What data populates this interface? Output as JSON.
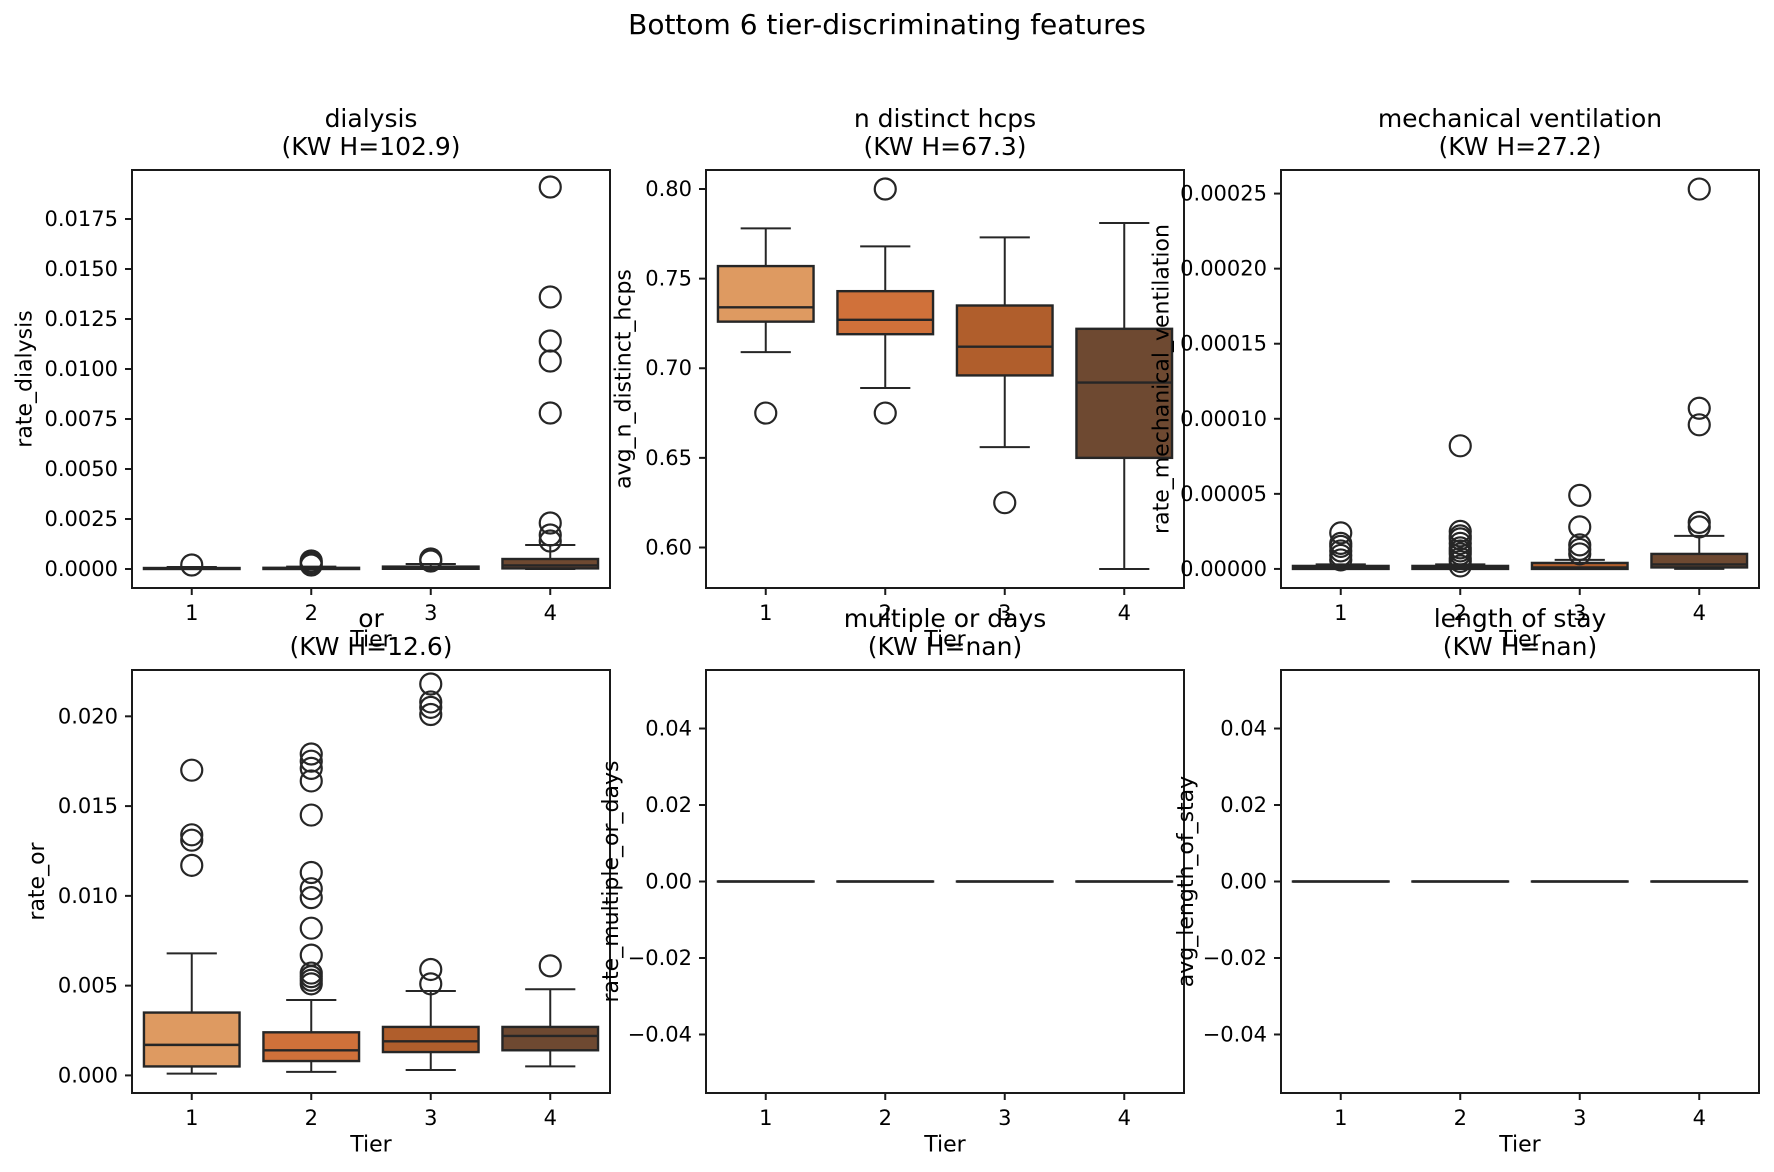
{
  "figure": {
    "suptitle": "Bottom 6 tier-discriminating features",
    "background": "#ffffff",
    "text_color": "#000000",
    "spine_color": "#1a1a1a",
    "box_line_color": "#262626",
    "tier_colors": [
      "#DE9A61",
      "#D0713A",
      "#B05E2C",
      "#6E4931"
    ]
  },
  "chart_data": [
    {
      "type": "box",
      "title": "dialysis",
      "subtitle": "(KW H=102.9)",
      "kw_h": "102.9",
      "xlabel": "Tier",
      "ylabel": "rate_dialysis",
      "categories": [
        "1",
        "2",
        "3",
        "4"
      ],
      "grid": false,
      "ylim": [
        -0.00095,
        0.01995
      ],
      "yticks": [
        0.0,
        0.0025,
        0.005,
        0.0075,
        0.01,
        0.0125,
        0.015,
        0.0175
      ],
      "ytick_labels": [
        "0.0000",
        "0.0025",
        "0.0050",
        "0.0075",
        "0.0100",
        "0.0125",
        "0.0150",
        "0.0175"
      ],
      "series": [
        {
          "tier": "1",
          "whislo": 0,
          "q1": 0,
          "med": 2e-05,
          "q3": 5e-05,
          "whishi": 0.0001,
          "outliers": [
            0.0002
          ]
        },
        {
          "tier": "2",
          "whislo": 0,
          "q1": 0,
          "med": 3e-05,
          "q3": 6e-05,
          "whishi": 0.00012,
          "outliers": [
            0.0002,
            0.0003,
            0.0004
          ]
        },
        {
          "tier": "3",
          "whislo": 0,
          "q1": 1e-05,
          "med": 5e-05,
          "q3": 0.00012,
          "whishi": 0.00025,
          "outliers": [
            0.0004,
            0.0005
          ]
        },
        {
          "tier": "4",
          "whislo": 0,
          "q1": 3e-05,
          "med": 0.00018,
          "q3": 0.0005,
          "whishi": 0.0012,
          "outliers": [
            0.0014,
            0.0017,
            0.0023,
            0.0078,
            0.0104,
            0.0114,
            0.0136,
            0.0191
          ]
        }
      ]
    },
    {
      "type": "box",
      "title": "n distinct hcps",
      "subtitle": "(KW H=67.3)",
      "kw_h": "67.3",
      "xlabel": "Tier",
      "ylabel": "avg_n_distinct_hcps",
      "categories": [
        "1",
        "2",
        "3",
        "4"
      ],
      "grid": false,
      "ylim": [
        0.5774,
        0.8106
      ],
      "yticks": [
        0.6,
        0.65,
        0.7,
        0.75,
        0.8
      ],
      "ytick_labels": [
        "0.60",
        "0.65",
        "0.70",
        "0.75",
        "0.80"
      ],
      "series": [
        {
          "tier": "1",
          "whislo": 0.709,
          "q1": 0.726,
          "med": 0.734,
          "q3": 0.757,
          "whishi": 0.778,
          "outliers": [
            0.675
          ]
        },
        {
          "tier": "2",
          "whislo": 0.689,
          "q1": 0.719,
          "med": 0.727,
          "q3": 0.743,
          "whishi": 0.768,
          "outliers": [
            0.675,
            0.8
          ]
        },
        {
          "tier": "3",
          "whislo": 0.656,
          "q1": 0.696,
          "med": 0.712,
          "q3": 0.735,
          "whishi": 0.773,
          "outliers": [
            0.625
          ]
        },
        {
          "tier": "4",
          "whislo": 0.588,
          "q1": 0.65,
          "med": 0.692,
          "q3": 0.722,
          "whishi": 0.781,
          "outliers": []
        }
      ]
    },
    {
      "type": "box",
      "title": "mechanical ventilation",
      "subtitle": "(KW H=27.2)",
      "kw_h": "27.2",
      "xlabel": "Tier",
      "ylabel": "rate_mechanical_ventilation",
      "categories": [
        "1",
        "2",
        "3",
        "4"
      ],
      "grid": false,
      "ylim": [
        -1.27e-05,
        0.0002657
      ],
      "yticks": [
        0.0,
        5e-05,
        0.0001,
        0.00015,
        0.0002,
        0.00025
      ],
      "ytick_labels": [
        "0.00000",
        "0.00005",
        "0.00010",
        "0.00015",
        "0.00020",
        "0.00025"
      ],
      "series": [
        {
          "tier": "1",
          "whislo": 0,
          "q1": 0,
          "med": 1e-06,
          "q3": 2e-06,
          "whishi": 3e-06,
          "outliers": [
            6e-06,
            9e-06,
            1.2e-05,
            1.5e-05,
            1.7e-05,
            2.4e-05
          ]
        },
        {
          "tier": "2",
          "whislo": 0,
          "q1": 0,
          "med": 1e-06,
          "q3": 2e-06,
          "whishi": 3e-06,
          "outliers": [
            2e-06,
            5e-06,
            7e-06,
            1e-05,
            1.2e-05,
            1.4e-05,
            1.7e-05,
            2e-05,
            2.2e-05,
            2.5e-05,
            8.2e-05
          ]
        },
        {
          "tier": "3",
          "whislo": 0,
          "q1": 0,
          "med": 1e-06,
          "q3": 4e-06,
          "whishi": 6e-06,
          "outliers": [
            1e-05,
            1.3e-05,
            1.6e-05,
            2.8e-05,
            4.9e-05
          ]
        },
        {
          "tier": "4",
          "whislo": 0,
          "q1": 1e-06,
          "med": 3e-06,
          "q3": 1e-05,
          "whishi": 2.2e-05,
          "outliers": [
            2.8e-05,
            3.1e-05,
            9.6e-05,
            0.000107,
            0.000253
          ]
        }
      ]
    },
    {
      "type": "box",
      "title": "or",
      "subtitle": "(KW H=12.6)",
      "kw_h": "12.6",
      "xlabel": "Tier",
      "ylabel": "rate_or",
      "categories": [
        "1",
        "2",
        "3",
        "4"
      ],
      "grid": false,
      "ylim": [
        -0.00098,
        0.02258
      ],
      "yticks": [
        0.0,
        0.005,
        0.01,
        0.015,
        0.02
      ],
      "ytick_labels": [
        "0.000",
        "0.005",
        "0.010",
        "0.015",
        "0.020"
      ],
      "series": [
        {
          "tier": "1",
          "whislo": 0.0001,
          "q1": 0.0005,
          "med": 0.0017,
          "q3": 0.0035,
          "whishi": 0.0068,
          "outliers": [
            0.0117,
            0.0131,
            0.0134,
            0.017
          ]
        },
        {
          "tier": "2",
          "whislo": 0.0002,
          "q1": 0.0008,
          "med": 0.0014,
          "q3": 0.0024,
          "whishi": 0.0042,
          "outliers": [
            0.0051,
            0.0053,
            0.0055,
            0.0057,
            0.0067,
            0.0082,
            0.0099,
            0.0104,
            0.0113,
            0.0145,
            0.0164,
            0.0171,
            0.0175,
            0.0179
          ]
        },
        {
          "tier": "3",
          "whislo": 0.0003,
          "q1": 0.0013,
          "med": 0.0019,
          "q3": 0.0027,
          "whishi": 0.0047,
          "outliers": [
            0.0051,
            0.0059,
            0.0201,
            0.0205,
            0.0208,
            0.0218
          ]
        },
        {
          "tier": "4",
          "whislo": 0.0005,
          "q1": 0.0014,
          "med": 0.0022,
          "q3": 0.0027,
          "whishi": 0.0048,
          "outliers": [
            0.0061
          ]
        }
      ]
    },
    {
      "type": "box",
      "title": "multiple or days",
      "subtitle": "(KW H=nan)",
      "kw_h": "nan",
      "xlabel": "Tier",
      "ylabel": "rate_multiple_or_days",
      "categories": [
        "1",
        "2",
        "3",
        "4"
      ],
      "grid": false,
      "ylim": [
        -0.0553,
        0.0553
      ],
      "yticks": [
        -0.04,
        -0.02,
        0.0,
        0.02,
        0.04
      ],
      "ytick_labels": [
        "−0.04",
        "−0.02",
        "0.00",
        "0.02",
        "0.04"
      ],
      "series": [
        {
          "tier": "1",
          "whislo": 0,
          "q1": 0,
          "med": 0,
          "q3": 0,
          "whishi": 0,
          "outliers": []
        },
        {
          "tier": "2",
          "whislo": 0,
          "q1": 0,
          "med": 0,
          "q3": 0,
          "whishi": 0,
          "outliers": []
        },
        {
          "tier": "3",
          "whislo": 0,
          "q1": 0,
          "med": 0,
          "q3": 0,
          "whishi": 0,
          "outliers": []
        },
        {
          "tier": "4",
          "whislo": 0,
          "q1": 0,
          "med": 0,
          "q3": 0,
          "whishi": 0,
          "outliers": []
        }
      ]
    },
    {
      "type": "box",
      "title": "length of stay",
      "subtitle": "(KW H=nan)",
      "kw_h": "nan",
      "xlabel": "Tier",
      "ylabel": "avg_length_of_stay",
      "categories": [
        "1",
        "2",
        "3",
        "4"
      ],
      "grid": false,
      "ylim": [
        -0.0553,
        0.0553
      ],
      "yticks": [
        -0.04,
        -0.02,
        0.0,
        0.02,
        0.04
      ],
      "ytick_labels": [
        "−0.04",
        "−0.02",
        "0.00",
        "0.02",
        "0.04"
      ],
      "series": [
        {
          "tier": "1",
          "whislo": 0,
          "q1": 0,
          "med": 0,
          "q3": 0,
          "whishi": 0,
          "outliers": []
        },
        {
          "tier": "2",
          "whislo": 0,
          "q1": 0,
          "med": 0,
          "q3": 0,
          "whishi": 0,
          "outliers": []
        },
        {
          "tier": "3",
          "whislo": 0,
          "q1": 0,
          "med": 0,
          "q3": 0,
          "whishi": 0,
          "outliers": []
        },
        {
          "tier": "4",
          "whislo": 0,
          "q1": 0,
          "med": 0,
          "q3": 0,
          "whishi": 0,
          "outliers": []
        }
      ]
    }
  ]
}
